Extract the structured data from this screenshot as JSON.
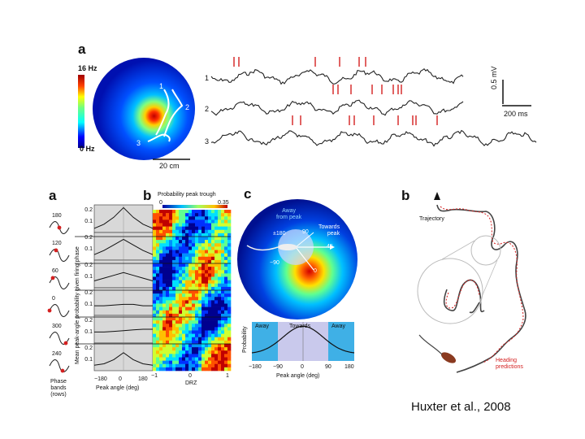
{
  "top_figure": {
    "panel_label": "a",
    "colorbar": {
      "max_label": "16 Hz",
      "min_label": "0 Hz"
    },
    "scale_bar": "20 cm",
    "path_labels": [
      "1",
      "2",
      "3"
    ],
    "traces": [
      {
        "label": "1",
        "spike_count": 6
      },
      {
        "label": "2",
        "spike_count": 8
      },
      {
        "label": "3",
        "spike_count": 9
      }
    ],
    "amplitude_scale": "0.5 mV",
    "time_scale": "200 ms"
  },
  "bottom_left": {
    "panel_label": "a",
    "phases": [
      "180",
      "120",
      "60",
      "0",
      "300",
      "240"
    ],
    "phase_caption": [
      "Phase",
      "bands",
      "(rows)"
    ],
    "ylabel": "Mean peak-angle probability given firing phase",
    "yticks": [
      "0.2",
      "0.1"
    ],
    "xticks": [
      "−180",
      "0",
      "180"
    ],
    "xlabel": "Peak angle (deg)"
  },
  "panel_b": {
    "panel_label": "b",
    "title": "Probability peak trough",
    "cbar_min": "0",
    "cbar_max": "0.35",
    "xticks": [
      "−1",
      "0",
      "1"
    ],
    "xlabel": "DRZ"
  },
  "panel_c": {
    "panel_label": "c",
    "away_label": [
      "Away",
      "from peak"
    ],
    "towards_label": [
      "Towards",
      "peak"
    ],
    "angles": [
      "±180",
      "90",
      "45",
      "−90",
      "0"
    ],
    "inset": {
      "ylabel": "Probability",
      "away": "Away",
      "towards": "Towards",
      "away2": "Away",
      "xticks": [
        "−180",
        "−90",
        "0",
        "90",
        "180"
      ],
      "xlabel": "Peak angle (deg)"
    }
  },
  "panel_b_right": {
    "panel_label": "b",
    "trajectory_label": "Trajectory",
    "heading_label": [
      "Heading",
      "predictions"
    ]
  },
  "citation": "Huxter et al., 2008",
  "chart_data": [
    {
      "type": "line",
      "series": [
        {
          "values": [
            0.03,
            0.06,
            0.11,
            0.18,
            0.11,
            0.06,
            0.03
          ]
        },
        {
          "values": [
            0.04,
            0.07,
            0.11,
            0.15,
            0.11,
            0.07,
            0.04
          ]
        },
        {
          "values": [
            0.05,
            0.07,
            0.09,
            0.11,
            0.09,
            0.07,
            0.05
          ]
        },
        {
          "values": [
            0.07,
            0.07,
            0.075,
            0.08,
            0.08,
            0.07,
            0.07
          ]
        },
        {
          "values": [
            0.08,
            0.08,
            0.085,
            0.09,
            0.095,
            0.1,
            0.1
          ]
        },
        {
          "values": [
            0.04,
            0.05,
            0.08,
            0.13,
            0.08,
            0.05,
            0.04
          ]
        }
      ],
      "x": [
        -180,
        -120,
        -60,
        0,
        60,
        120,
        180
      ],
      "xlabel": "Peak angle (deg)",
      "ylabel": "Mean peak-angle probability given firing phase",
      "ylim": [
        0,
        0.2
      ]
    },
    {
      "type": "line",
      "x": [
        -180,
        -90,
        0,
        90,
        180
      ],
      "values": [
        0.05,
        0.2,
        0.5,
        0.2,
        0.05
      ],
      "xlabel": "Peak angle (deg)",
      "ylabel": "Probability"
    }
  ],
  "colors": {
    "red": "#d42020",
    "away_blue": "#3fb0e6",
    "towards_lavender": "#c9c9ec"
  }
}
